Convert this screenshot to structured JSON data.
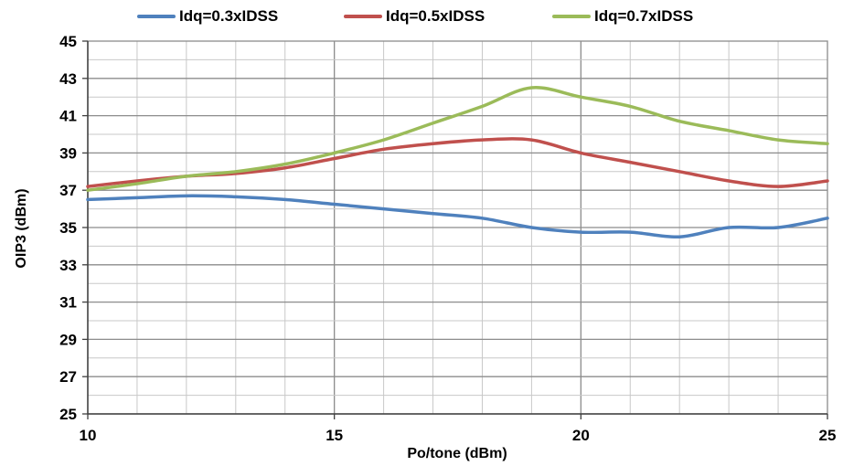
{
  "chart_data": {
    "type": "line",
    "xlabel": "Po/tone (dBm)",
    "ylabel": "OIP3 (dBm)",
    "xlim": [
      10,
      25
    ],
    "ylim": [
      25,
      45
    ],
    "xticks": [
      10,
      15,
      20,
      25
    ],
    "yticks": [
      25,
      27,
      29,
      31,
      33,
      35,
      37,
      39,
      41,
      43,
      45
    ],
    "grid": true,
    "legend_position": "top",
    "series": [
      {
        "name": "Idq=0.3xIDSS",
        "color": "#4f81bd",
        "x": [
          10,
          11,
          12,
          13,
          14,
          15,
          16,
          17,
          18,
          19,
          20,
          21,
          22,
          23,
          24,
          25
        ],
        "y": [
          36.5,
          36.6,
          36.7,
          36.65,
          36.5,
          36.25,
          36.0,
          35.75,
          35.5,
          35.0,
          34.75,
          34.75,
          34.5,
          35.0,
          35.0,
          35.5
        ]
      },
      {
        "name": "Idq=0.5xIDSS",
        "color": "#c0504d",
        "x": [
          10,
          11,
          12,
          13,
          14,
          15,
          16,
          17,
          18,
          19,
          20,
          21,
          22,
          23,
          24,
          25
        ],
        "y": [
          37.2,
          37.5,
          37.75,
          37.9,
          38.2,
          38.7,
          39.2,
          39.5,
          39.7,
          39.7,
          39.0,
          38.5,
          38.0,
          37.5,
          37.2,
          37.5
        ]
      },
      {
        "name": "Idq=0.7xIDSS",
        "color": "#9bbb59",
        "x": [
          10,
          11,
          12,
          13,
          14,
          15,
          16,
          17,
          18,
          19,
          20,
          21,
          22,
          23,
          24,
          25
        ],
        "y": [
          37.0,
          37.35,
          37.75,
          38.0,
          38.4,
          39.0,
          39.7,
          40.6,
          41.5,
          42.5,
          42.0,
          41.5,
          40.7,
          40.2,
          39.7,
          39.5
        ]
      }
    ]
  }
}
